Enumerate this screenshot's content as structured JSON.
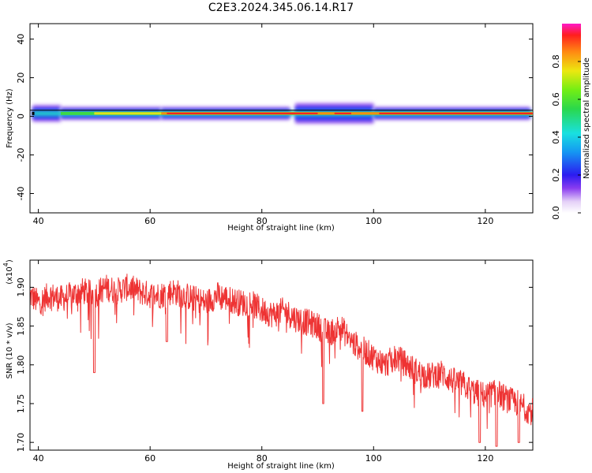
{
  "title": "C2E3.2024.345.06.14.R17",
  "chart_data": [
    {
      "type": "heatmap",
      "title": "C2E3.2024.345.06.14.R17",
      "xlabel": "Height of straight line (km)",
      "ylabel": "Frequency (Hz)",
      "xlim": [
        38.5,
        128.5
      ],
      "ylim": [
        -50,
        48
      ],
      "x_ticks": [
        40,
        60,
        80,
        100,
        120
      ],
      "y_ticks": [
        40,
        20,
        0,
        -20,
        -40
      ],
      "colorbar": {
        "label": "Normalized spectral amplitude",
        "range": [
          0,
          1
        ],
        "ticks": [
          "0.0",
          "0.2",
          "0.4",
          "0.6",
          "0.8"
        ]
      },
      "band_segments": [
        {
          "x": [
            39,
            44
          ],
          "halfwidth_hz": 4
        },
        {
          "x": [
            44,
            62
          ],
          "halfwidth_hz": 3
        },
        {
          "x": [
            62,
            85
          ],
          "halfwidth_hz": 3
        },
        {
          "x": [
            86,
            100
          ],
          "halfwidth_hz": 5
        },
        {
          "x": [
            100,
            128
          ],
          "halfwidth_hz": 3
        }
      ],
      "ridge_line_hz": 1.5,
      "grid": false
    },
    {
      "type": "line",
      "xlabel": "Height of straight line (km)",
      "ylabel": "SNR (10 * v/v)",
      "y_multiplier": "(x10",
      "y_multiplier_exp": "4",
      "y_multiplier_close": ")",
      "xlim": [
        38.5,
        128.5
      ],
      "ylim": [
        1.69,
        1.935
      ],
      "x_ticks": [
        40,
        60,
        80,
        100,
        120
      ],
      "y_ticks": [
        "1.70",
        "1.75",
        "1.80",
        "1.85",
        "1.90"
      ],
      "series": [
        {
          "color": "#ee3333",
          "x": [
            38.5,
            40,
            42,
            44,
            46,
            48,
            50,
            52,
            54,
            56,
            58,
            60,
            62,
            64,
            66,
            68,
            70,
            72,
            74,
            76,
            78,
            80,
            82,
            84,
            86,
            88,
            90,
            92,
            94,
            96,
            98,
            100,
            102,
            104,
            106,
            108,
            110,
            112,
            114,
            116,
            118,
            120,
            122,
            124,
            126,
            128
          ],
          "y": [
            1.89,
            1.88,
            1.89,
            1.885,
            1.89,
            1.895,
            1.89,
            1.9,
            1.895,
            1.9,
            1.895,
            1.89,
            1.89,
            1.895,
            1.89,
            1.885,
            1.88,
            1.89,
            1.885,
            1.88,
            1.88,
            1.87,
            1.865,
            1.87,
            1.86,
            1.855,
            1.85,
            1.84,
            1.85,
            1.83,
            1.82,
            1.81,
            1.8,
            1.81,
            1.8,
            1.79,
            1.785,
            1.79,
            1.78,
            1.775,
            1.765,
            1.76,
            1.765,
            1.755,
            1.75,
            1.74
          ]
        }
      ],
      "dips": [
        {
          "x": 50,
          "y": 1.79
        },
        {
          "x": 63,
          "y": 1.83
        },
        {
          "x": 91,
          "y": 1.75
        },
        {
          "x": 98,
          "y": 1.74
        },
        {
          "x": 119,
          "y": 1.7
        },
        {
          "x": 122,
          "y": 1.695
        },
        {
          "x": 126,
          "y": 1.7
        }
      ],
      "grid": false
    }
  ]
}
